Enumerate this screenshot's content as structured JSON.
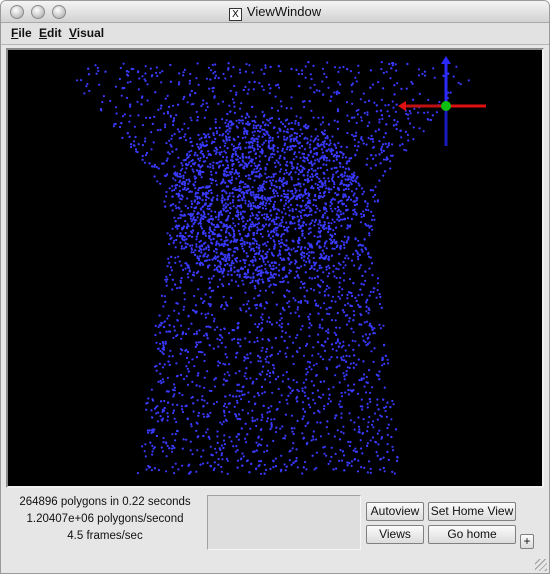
{
  "window": {
    "title": "ViewWindow",
    "x_icon_glyph": "X"
  },
  "menubar": {
    "items": [
      {
        "label_underlined": "F",
        "label_rest": "ile"
      },
      {
        "label_underlined": "E",
        "label_rest": "dit"
      },
      {
        "label_underlined": "V",
        "label_rest": "isual"
      }
    ]
  },
  "viewport": {
    "background": "#000000",
    "point_color": "#3a3aff",
    "axis_colors": {
      "x": "#e01010",
      "y": "#2a2aff",
      "origin": "#10c010"
    }
  },
  "stats": {
    "polygons_line": "264896 polygons in 0.22 seconds",
    "rate_line": "1.20407e+06 polygons/second",
    "fps_line": "4.5 frames/sec"
  },
  "buttons": {
    "autoview": "Autoview",
    "set_home_view": "Set Home View",
    "views": "Views",
    "go_home": "Go home",
    "plus": "+"
  }
}
